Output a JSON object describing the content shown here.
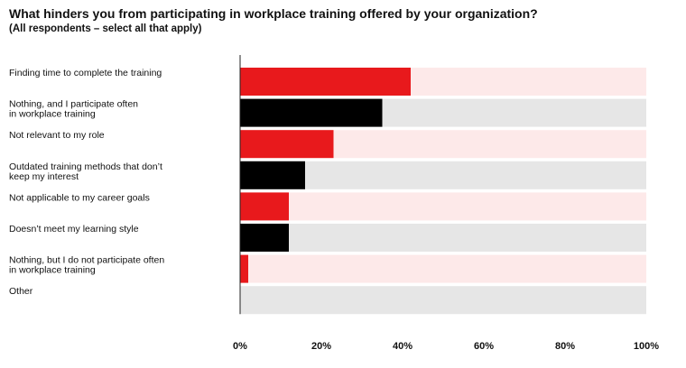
{
  "chart_data": {
    "type": "bar",
    "orientation": "horizontal",
    "title": "What hinders you from participating in workplace training offered by your organization?",
    "subtitle": "(All respondents – select all that apply)",
    "categories": [
      "Finding time to complete the training",
      "Nothing, and I participate often\nin workplace training",
      "Not relevant to my role",
      "Outdated training methods that don’t\nkeep my interest",
      "Not applicable to my career goals",
      "Doesn’t meet my learning style",
      "Nothing, but I do not participate often\nin workplace training",
      "Other"
    ],
    "values": [
      42,
      35,
      23,
      16,
      12,
      12,
      2,
      0
    ],
    "bar_colors": [
      "#e8191c",
      "#000000",
      "#e8191c",
      "#000000",
      "#e8191c",
      "#000000",
      "#e8191c",
      "#000000"
    ],
    "track_colors": [
      "#fde9e9",
      "#e6e6e6",
      "#fde9e9",
      "#e6e6e6",
      "#fde9e9",
      "#e6e6e6",
      "#fde9e9",
      "#e6e6e6"
    ],
    "xlim": [
      0,
      100
    ],
    "xticks": [
      0,
      20,
      40,
      60,
      80,
      100
    ],
    "xtick_labels": [
      "0%",
      "20%",
      "40%",
      "60%",
      "80%",
      "100%"
    ],
    "grid": false,
    "legend": "none"
  }
}
